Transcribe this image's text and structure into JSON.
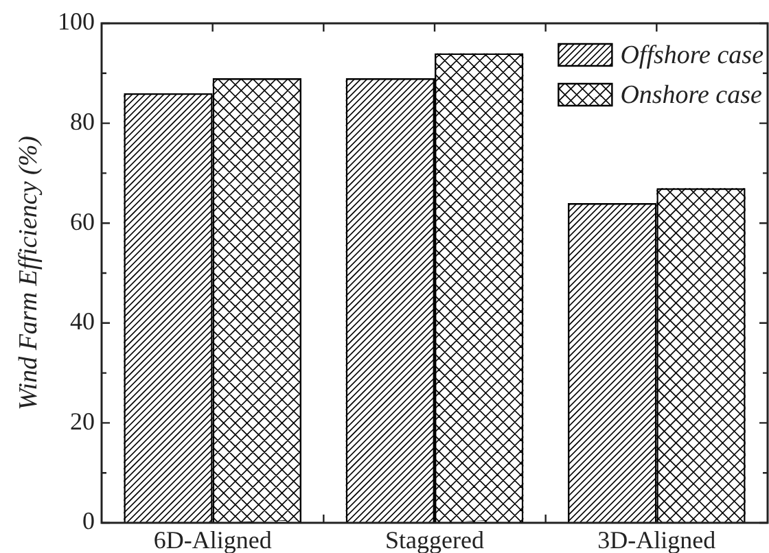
{
  "chart_data": {
    "type": "bar",
    "ylabel": "Wind Farm Efficiency (%)",
    "categories": [
      "6D-Aligned",
      "Staggered",
      "3D-Aligned"
    ],
    "series": [
      {
        "name": "Offshore case",
        "color": "#000000",
        "values": [
          86,
          89,
          64
        ]
      },
      {
        "name": "Onshore case",
        "color": "#000000",
        "values": [
          89,
          94,
          67
        ]
      }
    ],
    "ylim": [
      0,
      100
    ],
    "yticks": [
      0,
      {
        "value": 10,
        "label": null
      },
      20,
      {
        "value": 30,
        "label": null
      },
      40,
      {
        "value": 50,
        "label": null
      },
      60,
      {
        "value": 70,
        "label": null
      },
      80,
      {
        "value": 90,
        "label": null
      },
      100
    ],
    "legend": "top right"
  }
}
